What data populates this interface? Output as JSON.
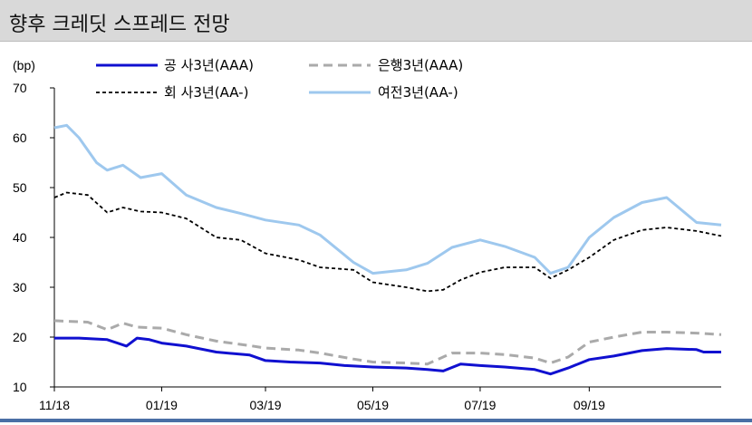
{
  "header": {
    "title": "향후 크레딧 스프레드 전망"
  },
  "chart_data": {
    "type": "line",
    "title": "향후 크레딧 스프레드 전망",
    "ylabel": "(bp)",
    "ylim": [
      10,
      70
    ],
    "yticks": [
      "70",
      "60",
      "50",
      "40",
      "30",
      "20",
      "10"
    ],
    "x_ticks": [
      "11/18",
      "01/19",
      "03/19",
      "05/19",
      "07/19",
      "09/19"
    ],
    "x_tick_dates": [
      "2018-11-01",
      "2019-01-01",
      "2019-03-01",
      "2019-05-01",
      "2019-07-01",
      "2019-09-01"
    ],
    "xlim": [
      "2018-11-01",
      "2019-11-15"
    ],
    "grid": false,
    "legend_position": "top",
    "series": [
      {
        "name": "공 사3년(AAA)",
        "color": "#1010d0",
        "style": "solid",
        "points": [
          [
            "2018-11-01",
            19.8
          ],
          [
            "2018-11-15",
            19.8
          ],
          [
            "2018-12-01",
            19.5
          ],
          [
            "2018-12-12",
            18.2
          ],
          [
            "2018-12-18",
            19.8
          ],
          [
            "2018-12-25",
            19.5
          ],
          [
            "2019-01-01",
            18.8
          ],
          [
            "2019-01-15",
            18.2
          ],
          [
            "2019-02-01",
            17.0
          ],
          [
            "2019-02-20",
            16.4
          ],
          [
            "2019-03-01",
            15.3
          ],
          [
            "2019-03-15",
            15.0
          ],
          [
            "2019-04-01",
            14.8
          ],
          [
            "2019-04-15",
            14.3
          ],
          [
            "2019-05-01",
            14.0
          ],
          [
            "2019-05-20",
            13.8
          ],
          [
            "2019-06-01",
            13.5
          ],
          [
            "2019-06-10",
            13.2
          ],
          [
            "2019-06-20",
            14.6
          ],
          [
            "2019-07-01",
            14.3
          ],
          [
            "2019-07-15",
            14.0
          ],
          [
            "2019-08-01",
            13.5
          ],
          [
            "2019-08-10",
            12.6
          ],
          [
            "2019-08-20",
            13.8
          ],
          [
            "2019-09-01",
            15.5
          ],
          [
            "2019-09-15",
            16.2
          ],
          [
            "2019-10-01",
            17.3
          ],
          [
            "2019-10-15",
            17.7
          ],
          [
            "2019-11-01",
            17.5
          ],
          [
            "2019-11-05",
            17.0
          ],
          [
            "2019-11-15",
            17.0
          ]
        ]
      },
      {
        "name": "은행3년(AAA)",
        "color": "#aaaaaa",
        "style": "dashed",
        "points": [
          [
            "2018-11-01",
            23.3
          ],
          [
            "2018-11-20",
            23.0
          ],
          [
            "2018-12-01",
            21.5
          ],
          [
            "2018-12-10",
            22.8
          ],
          [
            "2018-12-18",
            22.0
          ],
          [
            "2019-01-01",
            21.8
          ],
          [
            "2019-01-15",
            20.5
          ],
          [
            "2019-02-01",
            19.2
          ],
          [
            "2019-02-20",
            18.3
          ],
          [
            "2019-03-01",
            17.8
          ],
          [
            "2019-03-20",
            17.4
          ],
          [
            "2019-04-01",
            16.8
          ],
          [
            "2019-04-20",
            15.6
          ],
          [
            "2019-05-01",
            15.0
          ],
          [
            "2019-05-20",
            14.8
          ],
          [
            "2019-06-01",
            14.6
          ],
          [
            "2019-06-15",
            16.8
          ],
          [
            "2019-07-01",
            16.8
          ],
          [
            "2019-07-15",
            16.5
          ],
          [
            "2019-08-01",
            15.8
          ],
          [
            "2019-08-10",
            14.8
          ],
          [
            "2019-08-20",
            16.0
          ],
          [
            "2019-09-01",
            19.0
          ],
          [
            "2019-09-15",
            20.0
          ],
          [
            "2019-10-01",
            21.0
          ],
          [
            "2019-10-15",
            21.0
          ],
          [
            "2019-11-01",
            20.8
          ],
          [
            "2019-11-15",
            20.5
          ]
        ]
      },
      {
        "name": "회 사3년(AA-)",
        "color": "#000000",
        "style": "dotted",
        "points": [
          [
            "2018-11-01",
            48.0
          ],
          [
            "2018-11-08",
            49.0
          ],
          [
            "2018-11-20",
            48.5
          ],
          [
            "2018-12-01",
            45.0
          ],
          [
            "2018-12-10",
            46.0
          ],
          [
            "2018-12-20",
            45.2
          ],
          [
            "2019-01-01",
            45.0
          ],
          [
            "2019-01-15",
            43.8
          ],
          [
            "2019-02-01",
            40.0
          ],
          [
            "2019-02-15",
            39.5
          ],
          [
            "2019-03-01",
            36.8
          ],
          [
            "2019-03-20",
            35.5
          ],
          [
            "2019-04-01",
            34.0
          ],
          [
            "2019-04-20",
            33.5
          ],
          [
            "2019-05-01",
            31.0
          ],
          [
            "2019-05-20",
            30.0
          ],
          [
            "2019-06-01",
            29.2
          ],
          [
            "2019-06-10",
            29.5
          ],
          [
            "2019-06-20",
            31.5
          ],
          [
            "2019-07-01",
            33.0
          ],
          [
            "2019-07-15",
            34.0
          ],
          [
            "2019-08-01",
            34.0
          ],
          [
            "2019-08-10",
            31.8
          ],
          [
            "2019-08-20",
            33.5
          ],
          [
            "2019-09-01",
            36.0
          ],
          [
            "2019-09-15",
            39.5
          ],
          [
            "2019-10-01",
            41.5
          ],
          [
            "2019-10-15",
            42.0
          ],
          [
            "2019-11-01",
            41.3
          ],
          [
            "2019-11-15",
            40.3
          ]
        ]
      },
      {
        "name": "여전3년(AA-)",
        "color": "#9ec8ee",
        "style": "solid",
        "points": [
          [
            "2018-11-01",
            62.0
          ],
          [
            "2018-11-08",
            62.5
          ],
          [
            "2018-11-15",
            60.0
          ],
          [
            "2018-11-25",
            55.0
          ],
          [
            "2018-12-01",
            53.5
          ],
          [
            "2018-12-10",
            54.5
          ],
          [
            "2018-12-20",
            52.0
          ],
          [
            "2019-01-01",
            52.8
          ],
          [
            "2019-01-15",
            48.5
          ],
          [
            "2019-02-01",
            46.0
          ],
          [
            "2019-02-15",
            44.8
          ],
          [
            "2019-03-01",
            43.5
          ],
          [
            "2019-03-20",
            42.5
          ],
          [
            "2019-04-01",
            40.5
          ],
          [
            "2019-04-20",
            35.0
          ],
          [
            "2019-05-01",
            32.8
          ],
          [
            "2019-05-20",
            33.5
          ],
          [
            "2019-06-01",
            34.8
          ],
          [
            "2019-06-15",
            38.0
          ],
          [
            "2019-07-01",
            39.5
          ],
          [
            "2019-07-15",
            38.2
          ],
          [
            "2019-08-01",
            36.0
          ],
          [
            "2019-08-10",
            32.8
          ],
          [
            "2019-08-20",
            34.0
          ],
          [
            "2019-09-01",
            40.0
          ],
          [
            "2019-09-15",
            44.0
          ],
          [
            "2019-10-01",
            47.0
          ],
          [
            "2019-10-15",
            48.0
          ],
          [
            "2019-11-01",
            43.0
          ],
          [
            "2019-11-15",
            42.5
          ]
        ]
      }
    ]
  }
}
